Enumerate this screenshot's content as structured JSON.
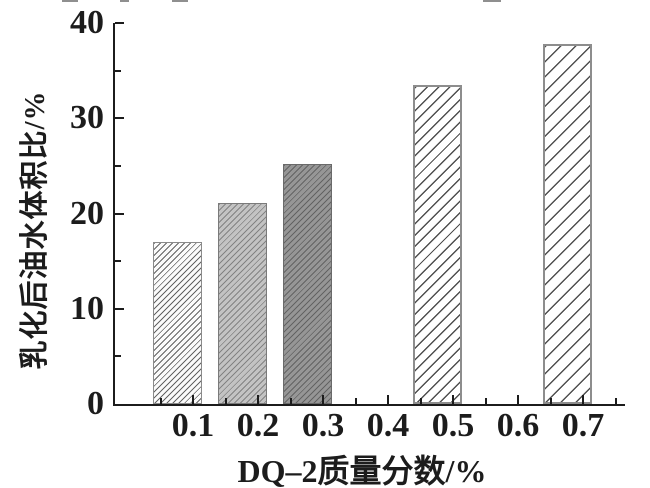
{
  "chart_data": {
    "type": "bar",
    "title": "",
    "xlabel": "DQ–2质量分数/%",
    "ylabel": "乳化后油水体积比/%",
    "categories": [
      "0.1",
      "0.2",
      "0.3",
      "0.5",
      "0.7"
    ],
    "values": [
      17.0,
      21.1,
      25.2,
      33.5,
      37.8
    ],
    "bars": [
      {
        "category": "0.1",
        "value": 17.0,
        "pattern": "fine-hatch-on-white"
      },
      {
        "category": "0.2",
        "value": 21.1,
        "pattern": "fine-hatch-on-light-gray"
      },
      {
        "category": "0.3",
        "value": 25.2,
        "pattern": "fine-hatch-on-dark-gray"
      },
      {
        "category": "0.5",
        "value": 33.5,
        "pattern": "wide-hatch-on-white"
      },
      {
        "category": "0.7",
        "value": 37.8,
        "pattern": "extra-wide-hatch-on-white"
      }
    ],
    "x_tick_labels": [
      "0.1",
      "0.2",
      "0.3",
      "0.4",
      "0.5",
      "0.6",
      "0.7"
    ],
    "y_tick_labels": [
      "0",
      "10",
      "20",
      "30",
      "40"
    ],
    "y_major_ticks": [
      0,
      10,
      20,
      30,
      40
    ],
    "y_minor_ticks": [
      5,
      15,
      25,
      35
    ],
    "ylim": [
      0,
      40
    ],
    "xlim_note": "categorical ticks 0.1–0.7, no bars at 0.4 and 0.6",
    "grid": false,
    "legend": "none",
    "hatch_direction": "/",
    "colors": {
      "axis": "#1c1c1c",
      "text": "#1c1c1c",
      "bar_light_gray": "#c3c3c3",
      "bar_dark_gray": "#969696",
      "hatch_line": "#4f4f4f",
      "background": "#ffffff"
    }
  }
}
